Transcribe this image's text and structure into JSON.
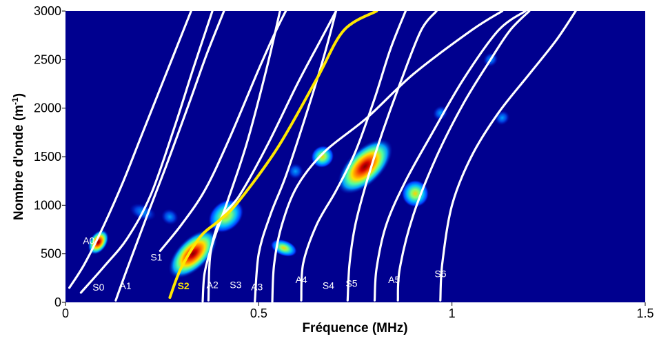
{
  "chart_data": {
    "type": "heatmap",
    "title": "",
    "xlabel": "Fréquence (MHz)",
    "ylabel": "Nombre d'onde (m",
    "ylabel_sup": "-1",
    "ylabel_close": ")",
    "xlim": [
      0,
      1.5
    ],
    "ylim": [
      0,
      3000
    ],
    "xticks": [
      {
        "value": 0,
        "label": "0"
      },
      {
        "value": 0.5,
        "label": "0.5"
      },
      {
        "value": 1,
        "label": "1"
      },
      {
        "value": 1.5,
        "label": "1.5"
      }
    ],
    "yticks": [
      {
        "value": 0,
        "label": "0"
      },
      {
        "value": 500,
        "label": "500"
      },
      {
        "value": 1000,
        "label": "1000"
      },
      {
        "value": 1500,
        "label": "1500"
      },
      {
        "value": 2000,
        "label": "2000"
      },
      {
        "value": 2500,
        "label": "2500"
      },
      {
        "value": 3000,
        "label": "3000"
      }
    ],
    "colors": {
      "background": "#00008f",
      "curve": "#ffffff",
      "highlight": "#ffe800"
    },
    "hotspots": [
      {
        "x": 0.085,
        "y": 620,
        "angle": -58,
        "length": 0.035,
        "width": 90,
        "intensity": 0.85
      },
      {
        "x": 0.2,
        "y": 930,
        "angle": -70,
        "length": 0.02,
        "width": 140,
        "intensity": 0.4
      },
      {
        "x": 0.27,
        "y": 880,
        "angle": -60,
        "length": 0.02,
        "width": 90,
        "intensity": 0.4
      },
      {
        "x": 0.33,
        "y": 500,
        "angle": -45,
        "length": 0.08,
        "width": 160,
        "intensity": 1.0
      },
      {
        "x": 0.415,
        "y": 890,
        "angle": -40,
        "length": 0.05,
        "width": 150,
        "intensity": 0.6
      },
      {
        "x": 0.565,
        "y": 560,
        "angle": -70,
        "length": 0.02,
        "width": 140,
        "intensity": 0.55
      },
      {
        "x": 0.595,
        "y": 1350,
        "angle": -35,
        "length": 0.02,
        "width": 80,
        "intensity": 0.35
      },
      {
        "x": 0.665,
        "y": 1500,
        "angle": -35,
        "length": 0.03,
        "width": 110,
        "intensity": 0.65
      },
      {
        "x": 0.775,
        "y": 1400,
        "angle": -45,
        "length": 0.09,
        "width": 180,
        "intensity": 1.0
      },
      {
        "x": 0.905,
        "y": 1120,
        "angle": -55,
        "length": 0.035,
        "width": 140,
        "intensity": 0.5
      },
      {
        "x": 0.97,
        "y": 1950,
        "angle": -40,
        "length": 0.02,
        "width": 70,
        "intensity": 0.2
      },
      {
        "x": 1.1,
        "y": 2500,
        "angle": -40,
        "length": 0.02,
        "width": 70,
        "intensity": 0.15
      },
      {
        "x": 1.13,
        "y": 1900,
        "angle": -40,
        "length": 0.02,
        "width": 70,
        "intensity": 0.15
      }
    ],
    "series": [
      {
        "label": "A0",
        "highlight": false,
        "label_at": [
          0.045,
          600
        ],
        "points": [
          [
            0.01,
            150
          ],
          [
            0.05,
            400
          ],
          [
            0.1,
            800
          ],
          [
            0.15,
            1250
          ],
          [
            0.2,
            1750
          ],
          [
            0.3,
            2750
          ],
          [
            0.325,
            3000
          ]
        ]
      },
      {
        "label": "S0",
        "highlight": false,
        "label_at": [
          0.07,
          120
        ],
        "points": [
          [
            0.04,
            100
          ],
          [
            0.1,
            370
          ],
          [
            0.16,
            660
          ],
          [
            0.22,
            1100
          ],
          [
            0.28,
            1780
          ],
          [
            0.33,
            2400
          ],
          [
            0.38,
            3000
          ]
        ]
      },
      {
        "label": "A1",
        "highlight": false,
        "label_at": [
          0.14,
          135
        ],
        "points": [
          [
            0.13,
            20
          ],
          [
            0.16,
            350
          ],
          [
            0.21,
            880
          ],
          [
            0.26,
            1400
          ],
          [
            0.32,
            2050
          ],
          [
            0.365,
            2550
          ],
          [
            0.41,
            3000
          ]
        ]
      },
      {
        "label": "S1",
        "highlight": false,
        "label_at": [
          0.22,
          430
        ],
        "points": [
          [
            0.245,
            530
          ],
          [
            0.3,
            800
          ],
          [
            0.36,
            1150
          ],
          [
            0.42,
            1650
          ],
          [
            0.5,
            2400
          ],
          [
            0.545,
            2800
          ],
          [
            0.57,
            3000
          ]
        ]
      },
      {
        "label": "S2",
        "highlight": true,
        "label_at": [
          0.29,
          135
        ],
        "points": [
          [
            0.27,
            50
          ],
          [
            0.3,
            360
          ],
          [
            0.35,
            680
          ],
          [
            0.4,
            850
          ],
          [
            0.45,
            1050
          ],
          [
            0.55,
            1600
          ],
          [
            0.65,
            2300
          ],
          [
            0.72,
            2800
          ],
          [
            0.805,
            3000
          ]
        ]
      },
      {
        "label": "A2",
        "highlight": false,
        "label_at": [
          0.365,
          145
        ],
        "points": [
          [
            0.355,
            10
          ],
          [
            0.36,
            300
          ],
          [
            0.38,
            600
          ],
          [
            0.42,
            1050
          ],
          [
            0.47,
            1650
          ],
          [
            0.52,
            2400
          ],
          [
            0.555,
            3000
          ]
        ]
      },
      {
        "label": "S3",
        "highlight": false,
        "label_at": [
          0.425,
          145
        ],
        "points": [
          [
            0.37,
            20
          ],
          [
            0.375,
            500
          ],
          [
            0.4,
            850
          ],
          [
            0.45,
            1100
          ],
          [
            0.52,
            1600
          ],
          [
            0.6,
            2250
          ],
          [
            0.66,
            2700
          ],
          [
            0.7,
            3000
          ]
        ]
      },
      {
        "label": "A3",
        "highlight": false,
        "label_at": [
          0.48,
          125
        ],
        "points": [
          [
            0.49,
            10
          ],
          [
            0.5,
            500
          ],
          [
            0.53,
            900
          ],
          [
            0.57,
            1300
          ],
          [
            0.62,
            1900
          ],
          [
            0.67,
            2550
          ],
          [
            0.7,
            3000
          ]
        ]
      },
      {
        "label": "A4",
        "highlight": false,
        "label_at": [
          0.595,
          200
        ],
        "points": [
          [
            0.535,
            5
          ],
          [
            0.54,
            400
          ],
          [
            0.56,
            800
          ],
          [
            0.6,
            1200
          ],
          [
            0.67,
            1550
          ],
          [
            0.78,
            1900
          ],
          [
            0.9,
            2350
          ],
          [
            1.05,
            2800
          ],
          [
            1.13,
            3000
          ]
        ]
      },
      {
        "label": "S4",
        "highlight": false,
        "label_at": [
          0.665,
          140
        ],
        "points": [
          [
            0.61,
            20
          ],
          [
            0.615,
            400
          ],
          [
            0.65,
            800
          ],
          [
            0.7,
            1150
          ],
          [
            0.75,
            1550
          ],
          [
            0.8,
            2100
          ],
          [
            0.84,
            2600
          ],
          [
            0.88,
            3000
          ]
        ]
      },
      {
        "label": "S5",
        "highlight": false,
        "label_at": [
          0.725,
          160
        ],
        "points": [
          [
            0.73,
            20
          ],
          [
            0.735,
            400
          ],
          [
            0.75,
            800
          ],
          [
            0.78,
            1250
          ],
          [
            0.82,
            1750
          ],
          [
            0.87,
            2300
          ],
          [
            0.92,
            2800
          ],
          [
            0.96,
            3000
          ]
        ]
      },
      {
        "label": "A5",
        "highlight": false,
        "label_at": [
          0.835,
          200
        ],
        "points": [
          [
            0.8,
            20
          ],
          [
            0.805,
            350
          ],
          [
            0.83,
            800
          ],
          [
            0.88,
            1250
          ],
          [
            0.95,
            1750
          ],
          [
            1.03,
            2300
          ],
          [
            1.12,
            2800
          ],
          [
            1.19,
            3000
          ]
        ]
      },
      {
        "label": "S6",
        "highlight": false,
        "label_at": [
          0.955,
          260
        ],
        "points": [
          [
            0.86,
            20
          ],
          [
            0.865,
            350
          ],
          [
            0.9,
            900
          ],
          [
            0.96,
            1500
          ],
          [
            1.03,
            2050
          ],
          [
            1.1,
            2500
          ],
          [
            1.15,
            2800
          ],
          [
            1.2,
            3000
          ]
        ]
      },
      {
        "label": "",
        "highlight": false,
        "label_at": null,
        "points": [
          [
            0.97,
            20
          ],
          [
            0.975,
            400
          ],
          [
            1.0,
            1000
          ],
          [
            1.05,
            1500
          ],
          [
            1.12,
            1950
          ],
          [
            1.2,
            2350
          ],
          [
            1.27,
            2700
          ],
          [
            1.32,
            3000
          ]
        ]
      }
    ]
  }
}
